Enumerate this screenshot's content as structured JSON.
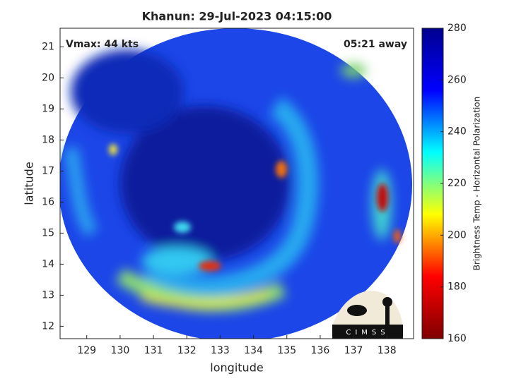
{
  "chart_data": {
    "type": "image",
    "title": "Khanun: 29-Jul-2023 04:15:00",
    "annotations": [
      "Vmax: 44 kts",
      "05:21 away"
    ],
    "xlabel": "longitude",
    "ylabel": "latitude",
    "xlim": [
      128.2,
      138.8
    ],
    "xticks": [
      129,
      130,
      131,
      132,
      133,
      134,
      135,
      136,
      137,
      138
    ],
    "ylim": [
      11.6,
      21.6
    ],
    "yticks": [
      12,
      13,
      14,
      15,
      16,
      17,
      18,
      19,
      20,
      21
    ],
    "colorbar": {
      "label": "Brightness Temp - Horizontal Polarization",
      "lim": [
        160,
        280
      ],
      "ticks": [
        160,
        180,
        200,
        220,
        240,
        260,
        280
      ],
      "colormap": [
        "#7f0000",
        "#ff0000",
        "#ffff00",
        "#00ffff",
        "#0000ff",
        "#00008f"
      ]
    }
  },
  "logo": "CIMSS"
}
